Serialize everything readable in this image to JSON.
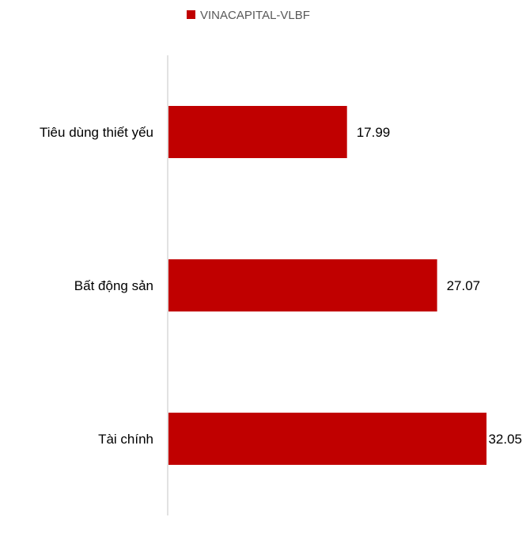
{
  "chart_data": {
    "type": "bar",
    "orientation": "horizontal",
    "categories": [
      "Tiêu dùng thiết yếu",
      "Bất động sản",
      "Tài chính"
    ],
    "series": [
      {
        "name": "VINACAPITAL-VLBF",
        "values": [
          17.99,
          27.07,
          32.05
        ],
        "value_labels": [
          "17.99",
          "27.07",
          "32.05"
        ],
        "color": "#C00000"
      }
    ],
    "title": "",
    "xlabel": "",
    "ylabel": "",
    "xlim": [
      0,
      33
    ],
    "grid": false,
    "legend_position": "top"
  },
  "colors": {
    "bar": "#C00000",
    "axis": "#D9D9D9",
    "legend_text": "#595959"
  }
}
